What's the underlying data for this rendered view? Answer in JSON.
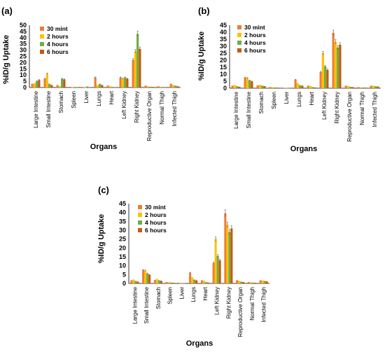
{
  "colors": {
    "30 mint": "#ED7D31",
    "2 hours": "#FFC000",
    "4 hours": "#70AD47",
    "6 hours": "#C55A11"
  },
  "chart_data": [
    {
      "panel": "(a)",
      "type": "bar",
      "xlabel": "Organs",
      "ylabel": "%ID/g Uptake",
      "ylim": [
        0,
        50
      ],
      "yticks": [
        0,
        5,
        10,
        15,
        20,
        25,
        30,
        35,
        40,
        45,
        50
      ],
      "legend": "top-left",
      "categories": [
        "Large Intestine",
        "Small Intestine",
        "Stomach",
        "Spleen",
        "Liver",
        "Lungs",
        "Heart",
        "Left Kidney",
        "Right  Kidney",
        "Reproductive Organ",
        "Normal Thigh",
        "Infected Thigh"
      ],
      "series": [
        {
          "name": "30 mint",
          "values": [
            3,
            7,
            2,
            0.5,
            0.4,
            8,
            1.5,
            8,
            22,
            1.5,
            1,
            3
          ]
        },
        {
          "name": "2 hours",
          "values": [
            3.5,
            11,
            1,
            0.3,
            0.2,
            2,
            1,
            7,
            29,
            1,
            0.6,
            2
          ]
        },
        {
          "name": "4 hours",
          "values": [
            5,
            3,
            7,
            0.4,
            0.8,
            3,
            0.5,
            8,
            43,
            0.6,
            0.4,
            1.5
          ]
        },
        {
          "name": "6 hours",
          "values": [
            6,
            2,
            6.5,
            0.3,
            0.3,
            2,
            0.3,
            7,
            31,
            0.5,
            0.3,
            1
          ]
        }
      ]
    },
    {
      "panel": "(b)",
      "type": "bar",
      "xlabel": "Organs",
      "ylabel": "%ID/g Uptake",
      "ylim": [
        0,
        45
      ],
      "yticks": [
        0,
        5,
        10,
        15,
        20,
        25,
        30,
        35,
        40,
        45
      ],
      "legend": "top-left",
      "categories": [
        "Large Intestine",
        "Small Intestine",
        "Stomach",
        "Spleen",
        "Liver",
        "Lungs",
        "Heart",
        "Left Kidney",
        "Right  Kidney",
        "Reproductive Organ",
        "Normal Thigh",
        "Infected Thigh"
      ],
      "series": [
        {
          "name": "30 mint",
          "values": [
            1.8,
            7.5,
            2,
            0.8,
            0.4,
            6,
            1.8,
            11.5,
            39.5,
            1.8,
            0.8,
            1.8
          ]
        },
        {
          "name": "2 hours",
          "values": [
            2.2,
            7.2,
            2.5,
            0.7,
            0.3,
            3.5,
            1.6,
            25,
            33,
            1.5,
            0.6,
            1.7
          ]
        },
        {
          "name": "4 hours",
          "values": [
            1.4,
            5.5,
            1.8,
            0.5,
            0.2,
            2.2,
            0.8,
            15.5,
            29,
            1,
            0.5,
            1.4
          ]
        },
        {
          "name": "6 hours",
          "values": [
            1,
            4.8,
            1.5,
            0.4,
            0.2,
            1.8,
            0.5,
            13,
            31,
            0.8,
            0.4,
            1.2
          ]
        }
      ]
    },
    {
      "panel": "(c)",
      "type": "bar",
      "xlabel": "Organs",
      "ylabel": "%ID/g Uptake",
      "ylim": [
        0,
        45
      ],
      "yticks": [
        0,
        5,
        10,
        15,
        20,
        25,
        30,
        35,
        40,
        45
      ],
      "legend": "top-left",
      "categories": [
        "Large Intestine",
        "Small Intestine",
        "Stomach",
        "Spleen",
        "Liver",
        "Lungs",
        "Heart",
        "Left Kidney",
        "Right  Kidney",
        "Reproductive Organ",
        "Normal Thigh",
        "Infected Thigh"
      ],
      "series": [
        {
          "name": "30 mint",
          "values": [
            1.8,
            7.5,
            2,
            0.8,
            0.4,
            6,
            1.8,
            11.5,
            39.5,
            1.8,
            0.8,
            1.8
          ]
        },
        {
          "name": "2 hours",
          "values": [
            2.2,
            7.2,
            2.5,
            0.7,
            0.3,
            3.5,
            1.6,
            25,
            33,
            1.5,
            0.6,
            1.7
          ]
        },
        {
          "name": "4 hours",
          "values": [
            1.4,
            5.5,
            1.8,
            0.5,
            0.2,
            2.2,
            0.8,
            15.5,
            29,
            1,
            0.5,
            1.4
          ]
        },
        {
          "name": "6 hours",
          "values": [
            1,
            4.8,
            1.5,
            0.4,
            0.2,
            1.8,
            0.5,
            13,
            31,
            0.8,
            0.4,
            1.2
          ]
        }
      ]
    }
  ]
}
